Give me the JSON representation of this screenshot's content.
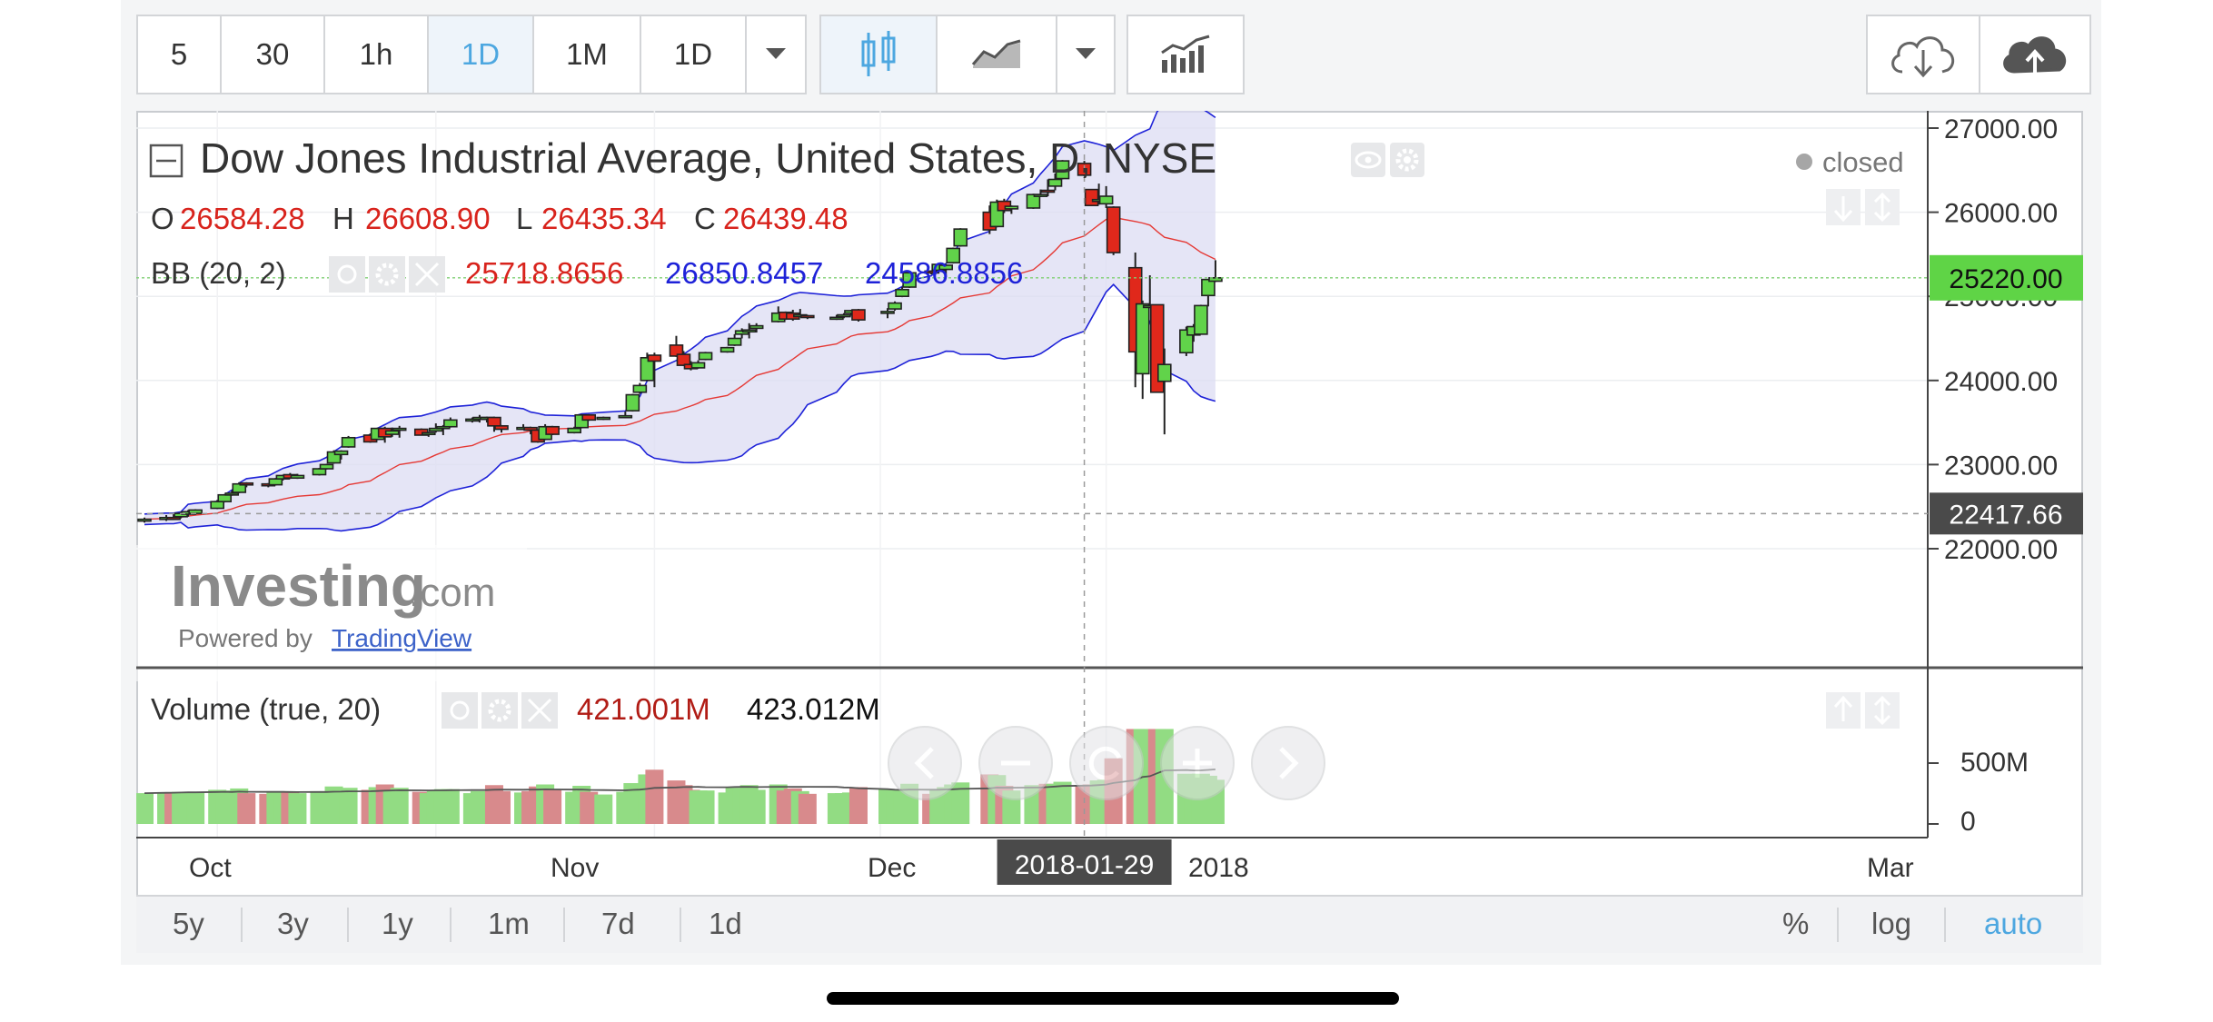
{
  "toolbar": {
    "intervals": [
      "5",
      "30",
      "1h",
      "1D",
      "1M",
      "1D"
    ],
    "active_interval": "1D"
  },
  "header": {
    "title": "Dow Jones Industrial Average, United States, D, NYSE",
    "market_status": "closed",
    "ohlc": {
      "o_label": "O",
      "o": "26584.28",
      "h_label": "H",
      "h": "26608.90",
      "l_label": "L",
      "l": "26435.34",
      "c_label": "C",
      "c": "26439.48"
    }
  },
  "bb": {
    "label": "BB (20, 2)",
    "mid": "25718.8656",
    "upper": "26850.8457",
    "lower": "24586.8856",
    "colors": {
      "mid": "#e53935",
      "band": "#1e22d8"
    }
  },
  "volume_legend": {
    "label": "Volume (true, 20)",
    "v1": "421.001M",
    "v2": "423.012M"
  },
  "watermark": {
    "brand": "Investing",
    "suffix": ".com",
    "powered": "Powered by",
    "tradingview": "TradingView"
  },
  "price_axis": {
    "labels": [
      "27000.00",
      "26000.00",
      "25000.00",
      "24000.00",
      "23000.00",
      "22000.00"
    ],
    "last_price": "25220.00",
    "crosshair_price": "22417.66"
  },
  "volume_axis": {
    "labels": [
      "500M",
      "0"
    ]
  },
  "time_axis": {
    "labels": [
      "Oct",
      "Nov",
      "Dec",
      "2018",
      "Mar"
    ],
    "crosshair_date": "2018-01-29"
  },
  "range_buttons": [
    "5y",
    "3y",
    "1y",
    "1m",
    "7d",
    "1d"
  ],
  "scale_buttons": [
    "%",
    "log",
    "auto"
  ],
  "colors": {
    "up": "#61d34a",
    "down": "#e0281b",
    "accent": "#4da7e0",
    "last_price_bg": "#5fd446"
  },
  "chart_data": {
    "type": "candlestick",
    "title": "Dow Jones Industrial Average, United States, D, NYSE",
    "ylim": [
      21700,
      27300
    ],
    "x_start": "2017-09-22",
    "candles": [
      {
        "d": "2017-09-22",
        "o": 22330,
        "h": 22370,
        "l": 22310,
        "c": 22350
      },
      {
        "d": "2017-09-25",
        "o": 22360,
        "h": 22400,
        "l": 22330,
        "c": 22370
      },
      {
        "d": "2017-09-26",
        "o": 22370,
        "h": 22410,
        "l": 22340,
        "c": 22360
      },
      {
        "d": "2017-09-27",
        "o": 22380,
        "h": 22440,
        "l": 22360,
        "c": 22420
      },
      {
        "d": "2017-09-28",
        "o": 22410,
        "h": 22460,
        "l": 22380,
        "c": 22440
      },
      {
        "d": "2017-09-29",
        "o": 22420,
        "h": 22470,
        "l": 22400,
        "c": 22460
      },
      {
        "d": "2017-10-02",
        "o": 22480,
        "h": 22580,
        "l": 22470,
        "c": 22560
      },
      {
        "d": "2017-10-03",
        "o": 22560,
        "h": 22650,
        "l": 22550,
        "c": 22640
      },
      {
        "d": "2017-10-04",
        "o": 22650,
        "h": 22690,
        "l": 22630,
        "c": 22660
      },
      {
        "d": "2017-10-05",
        "o": 22670,
        "h": 22790,
        "l": 22660,
        "c": 22770
      },
      {
        "d": "2017-10-06",
        "o": 22780,
        "h": 22790,
        "l": 22730,
        "c": 22770
      },
      {
        "d": "2017-10-09",
        "o": 22770,
        "h": 22780,
        "l": 22730,
        "c": 22760
      },
      {
        "d": "2017-10-10",
        "o": 22760,
        "h": 22840,
        "l": 22750,
        "c": 22830
      },
      {
        "d": "2017-10-11",
        "o": 22830,
        "h": 22880,
        "l": 22810,
        "c": 22870
      },
      {
        "d": "2017-10-12",
        "o": 22880,
        "h": 22900,
        "l": 22830,
        "c": 22840
      },
      {
        "d": "2017-10-13",
        "o": 22840,
        "h": 22890,
        "l": 22830,
        "c": 22870
      },
      {
        "d": "2017-10-16",
        "o": 22880,
        "h": 22960,
        "l": 22870,
        "c": 22950
      },
      {
        "d": "2017-10-17",
        "o": 22950,
        "h": 23010,
        "l": 22940,
        "c": 23000
      },
      {
        "d": "2017-10-18",
        "o": 23020,
        "h": 23170,
        "l": 23010,
        "c": 23150
      },
      {
        "d": "2017-10-19",
        "o": 23120,
        "h": 23170,
        "l": 23060,
        "c": 23160
      },
      {
        "d": "2017-10-20",
        "o": 23210,
        "h": 23340,
        "l": 23200,
        "c": 23320
      },
      {
        "d": "2017-10-23",
        "o": 23350,
        "h": 23370,
        "l": 23260,
        "c": 23270
      },
      {
        "d": "2017-10-24",
        "o": 23300,
        "h": 23440,
        "l": 23290,
        "c": 23430
      },
      {
        "d": "2017-10-25",
        "o": 23430,
        "h": 23450,
        "l": 23260,
        "c": 23330
      },
      {
        "d": "2017-10-26",
        "o": 23360,
        "h": 23440,
        "l": 23330,
        "c": 23400
      },
      {
        "d": "2017-10-27",
        "o": 23430,
        "h": 23460,
        "l": 23320,
        "c": 23430
      },
      {
        "d": "2017-10-30",
        "o": 23420,
        "h": 23430,
        "l": 23350,
        "c": 23350
      },
      {
        "d": "2017-10-31",
        "o": 23370,
        "h": 23390,
        "l": 23330,
        "c": 23380
      },
      {
        "d": "2017-11-01",
        "o": 23400,
        "h": 23490,
        "l": 23380,
        "c": 23430
      },
      {
        "d": "2017-11-02",
        "o": 23440,
        "h": 23470,
        "l": 23350,
        "c": 23450
      },
      {
        "d": "2017-11-03",
        "o": 23450,
        "h": 23560,
        "l": 23440,
        "c": 23530
      },
      {
        "d": "2017-11-06",
        "o": 23530,
        "h": 23560,
        "l": 23500,
        "c": 23540
      },
      {
        "d": "2017-11-07",
        "o": 23550,
        "h": 23590,
        "l": 23500,
        "c": 23560
      },
      {
        "d": "2017-11-08",
        "o": 23560,
        "h": 23570,
        "l": 23500,
        "c": 23560
      },
      {
        "d": "2017-11-09",
        "o": 23560,
        "h": 23570,
        "l": 23390,
        "c": 23460
      },
      {
        "d": "2017-11-10",
        "o": 23460,
        "h": 23470,
        "l": 23380,
        "c": 23420
      },
      {
        "d": "2017-11-13",
        "o": 23420,
        "h": 23480,
        "l": 23410,
        "c": 23440
      },
      {
        "d": "2017-11-14",
        "o": 23440,
        "h": 23450,
        "l": 23360,
        "c": 23410
      },
      {
        "d": "2017-11-15",
        "o": 23410,
        "h": 23420,
        "l": 23260,
        "c": 23270
      },
      {
        "d": "2017-11-16",
        "o": 23300,
        "h": 23480,
        "l": 23290,
        "c": 23450
      },
      {
        "d": "2017-11-17",
        "o": 23450,
        "h": 23460,
        "l": 23350,
        "c": 23360
      },
      {
        "d": "2017-11-20",
        "o": 23380,
        "h": 23450,
        "l": 23370,
        "c": 23430
      },
      {
        "d": "2017-11-21",
        "o": 23440,
        "h": 23600,
        "l": 23430,
        "c": 23590
      },
      {
        "d": "2017-11-22",
        "o": 23590,
        "h": 23600,
        "l": 23520,
        "c": 23530
      },
      {
        "d": "2017-11-24",
        "o": 23550,
        "h": 23570,
        "l": 23530,
        "c": 23560
      },
      {
        "d": "2017-11-27",
        "o": 23560,
        "h": 23630,
        "l": 23550,
        "c": 23580
      },
      {
        "d": "2017-11-28",
        "o": 23640,
        "h": 23840,
        "l": 23630,
        "c": 23830
      },
      {
        "d": "2017-11-29",
        "o": 23860,
        "h": 23970,
        "l": 23840,
        "c": 23940
      },
      {
        "d": "2017-11-30",
        "o": 24000,
        "h": 24330,
        "l": 23990,
        "c": 24270
      },
      {
        "d": "2017-12-01",
        "o": 24300,
        "h": 24330,
        "l": 23920,
        "c": 24230
      },
      {
        "d": "2017-12-04",
        "o": 24420,
        "h": 24530,
        "l": 24280,
        "c": 24290
      },
      {
        "d": "2017-12-05",
        "o": 24310,
        "h": 24350,
        "l": 24170,
        "c": 24180
      },
      {
        "d": "2017-12-06",
        "o": 24190,
        "h": 24230,
        "l": 24120,
        "c": 24140
      },
      {
        "d": "2017-12-07",
        "o": 24150,
        "h": 24240,
        "l": 24140,
        "c": 24210
      },
      {
        "d": "2017-12-08",
        "o": 24250,
        "h": 24340,
        "l": 24240,
        "c": 24330
      },
      {
        "d": "2017-12-11",
        "o": 24340,
        "h": 24400,
        "l": 24330,
        "c": 24390
      },
      {
        "d": "2017-12-12",
        "o": 24420,
        "h": 24550,
        "l": 24410,
        "c": 24500
      },
      {
        "d": "2017-12-13",
        "o": 24550,
        "h": 24620,
        "l": 24500,
        "c": 24590
      },
      {
        "d": "2017-12-14",
        "o": 24600,
        "h": 24680,
        "l": 24500,
        "c": 24600
      },
      {
        "d": "2017-12-15",
        "o": 24620,
        "h": 24680,
        "l": 24570,
        "c": 24650
      },
      {
        "d": "2017-12-18",
        "o": 24700,
        "h": 24880,
        "l": 24690,
        "c": 24800
      },
      {
        "d": "2017-12-19",
        "o": 24810,
        "h": 24820,
        "l": 24720,
        "c": 24730
      },
      {
        "d": "2017-12-20",
        "o": 24800,
        "h": 24840,
        "l": 24710,
        "c": 24730
      },
      {
        "d": "2017-12-21",
        "o": 24780,
        "h": 24850,
        "l": 24760,
        "c": 24780
      },
      {
        "d": "2017-12-22",
        "o": 24770,
        "h": 24780,
        "l": 24730,
        "c": 24750
      },
      {
        "d": "2017-12-26",
        "o": 24750,
        "h": 24780,
        "l": 24720,
        "c": 24750
      },
      {
        "d": "2017-12-27",
        "o": 24760,
        "h": 24800,
        "l": 24740,
        "c": 24780
      },
      {
        "d": "2017-12-28",
        "o": 24800,
        "h": 24840,
        "l": 24770,
        "c": 24830
      },
      {
        "d": "2017-12-29",
        "o": 24840,
        "h": 24850,
        "l": 24700,
        "c": 24720
      },
      {
        "d": "2018-01-02",
        "o": 24810,
        "h": 24860,
        "l": 24740,
        "c": 24820
      },
      {
        "d": "2018-01-03",
        "o": 24850,
        "h": 24940,
        "l": 24830,
        "c": 24920
      },
      {
        "d": "2018-01-04",
        "o": 25000,
        "h": 25110,
        "l": 24990,
        "c": 25080
      },
      {
        "d": "2018-01-05",
        "o": 25110,
        "h": 25300,
        "l": 25100,
        "c": 25280
      },
      {
        "d": "2018-01-08",
        "o": 25300,
        "h": 25310,
        "l": 25260,
        "c": 25290
      },
      {
        "d": "2018-01-09",
        "o": 25310,
        "h": 25390,
        "l": 25270,
        "c": 25380
      },
      {
        "d": "2018-01-10",
        "o": 25320,
        "h": 25380,
        "l": 25230,
        "c": 25370
      },
      {
        "d": "2018-01-11",
        "o": 25400,
        "h": 25580,
        "l": 25390,
        "c": 25570
      },
      {
        "d": "2018-01-12",
        "o": 25600,
        "h": 25810,
        "l": 25590,
        "c": 25800
      },
      {
        "d": "2018-01-16",
        "o": 26000,
        "h": 26080,
        "l": 25740,
        "c": 25790
      },
      {
        "d": "2018-01-17",
        "o": 25830,
        "h": 26150,
        "l": 25820,
        "c": 26120
      },
      {
        "d": "2018-01-18",
        "o": 26130,
        "h": 26160,
        "l": 25990,
        "c": 26020
      },
      {
        "d": "2018-01-19",
        "o": 26040,
        "h": 26080,
        "l": 25980,
        "c": 26070
      },
      {
        "d": "2018-01-22",
        "o": 26050,
        "h": 26220,
        "l": 26040,
        "c": 26210
      },
      {
        "d": "2018-01-23",
        "o": 26210,
        "h": 26270,
        "l": 26180,
        "c": 26210
      },
      {
        "d": "2018-01-24",
        "o": 26260,
        "h": 26390,
        "l": 26190,
        "c": 26250
      },
      {
        "d": "2018-01-25",
        "o": 26310,
        "h": 26460,
        "l": 26260,
        "c": 26390
      },
      {
        "d": "2018-01-26",
        "o": 26400,
        "h": 26620,
        "l": 26390,
        "c": 26610
      },
      {
        "d": "2018-01-29",
        "o": 26580,
        "h": 26610,
        "l": 26430,
        "c": 26440
      },
      {
        "d": "2018-01-30",
        "o": 26270,
        "h": 26270,
        "l": 26080,
        "c": 26080
      },
      {
        "d": "2018-01-31",
        "o": 26150,
        "h": 26340,
        "l": 26090,
        "c": 26150
      },
      {
        "d": "2018-02-01",
        "o": 26100,
        "h": 26310,
        "l": 26050,
        "c": 26190
      },
      {
        "d": "2018-02-02",
        "o": 26060,
        "h": 26070,
        "l": 25490,
        "c": 25520
      },
      {
        "d": "2018-02-05",
        "o": 25340,
        "h": 25520,
        "l": 23920,
        "c": 24340
      },
      {
        "d": "2018-02-06",
        "o": 24080,
        "h": 24950,
        "l": 23780,
        "c": 24910
      },
      {
        "d": "2018-02-07",
        "o": 24890,
        "h": 25250,
        "l": 24860,
        "c": 24890
      },
      {
        "d": "2018-02-08",
        "o": 24900,
        "h": 24900,
        "l": 23860,
        "c": 23860
      },
      {
        "d": "2018-02-09",
        "o": 23990,
        "h": 24380,
        "l": 23360,
        "c": 24190
      },
      {
        "d": "2018-02-12",
        "o": 24330,
        "h": 24640,
        "l": 24290,
        "c": 24600
      },
      {
        "d": "2018-02-13",
        "o": 24540,
        "h": 24670,
        "l": 24460,
        "c": 24640
      },
      {
        "d": "2018-02-14",
        "o": 24550,
        "h": 24900,
        "l": 24550,
        "c": 24890
      },
      {
        "d": "2018-02-15",
        "o": 25010,
        "h": 25200,
        "l": 24880,
        "c": 25200
      },
      {
        "d": "2018-02-16",
        "o": 25180,
        "h": 25430,
        "l": 25170,
        "c": 25220
      }
    ],
    "volume_up_color": "#92dc83",
    "volume_down_color": "#d88a8c"
  }
}
